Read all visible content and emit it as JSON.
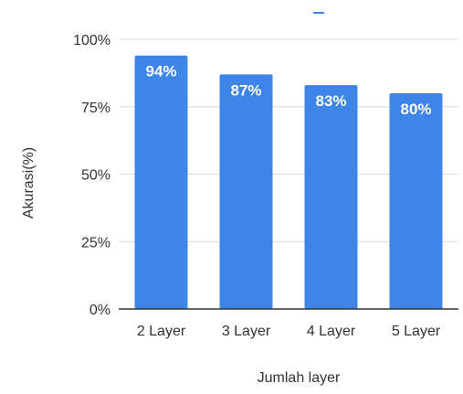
{
  "chart_data": {
    "type": "bar",
    "title": "",
    "xlabel": "Jumlah layer",
    "ylabel": "Akurasi(%)",
    "categories": [
      "2 Layer",
      "3 Layer",
      "4 Layer",
      "5 Layer"
    ],
    "values": [
      94,
      87,
      83,
      80
    ],
    "data_labels": [
      "94%",
      "87%",
      "83%",
      "80%"
    ],
    "ylim": [
      0,
      100
    ],
    "yticks": [
      0,
      25,
      50,
      75,
      100
    ],
    "ytick_labels": [
      "0%",
      "25%",
      "50%",
      "75%",
      "100%"
    ],
    "grid": true,
    "legend": "none",
    "colors": {
      "bar": "#3d85e6",
      "data_label": "#ffffff",
      "grid": "#d9d9d9",
      "axis": "#333333",
      "text": "#333333",
      "legend_marker": "#3d85e6"
    }
  }
}
